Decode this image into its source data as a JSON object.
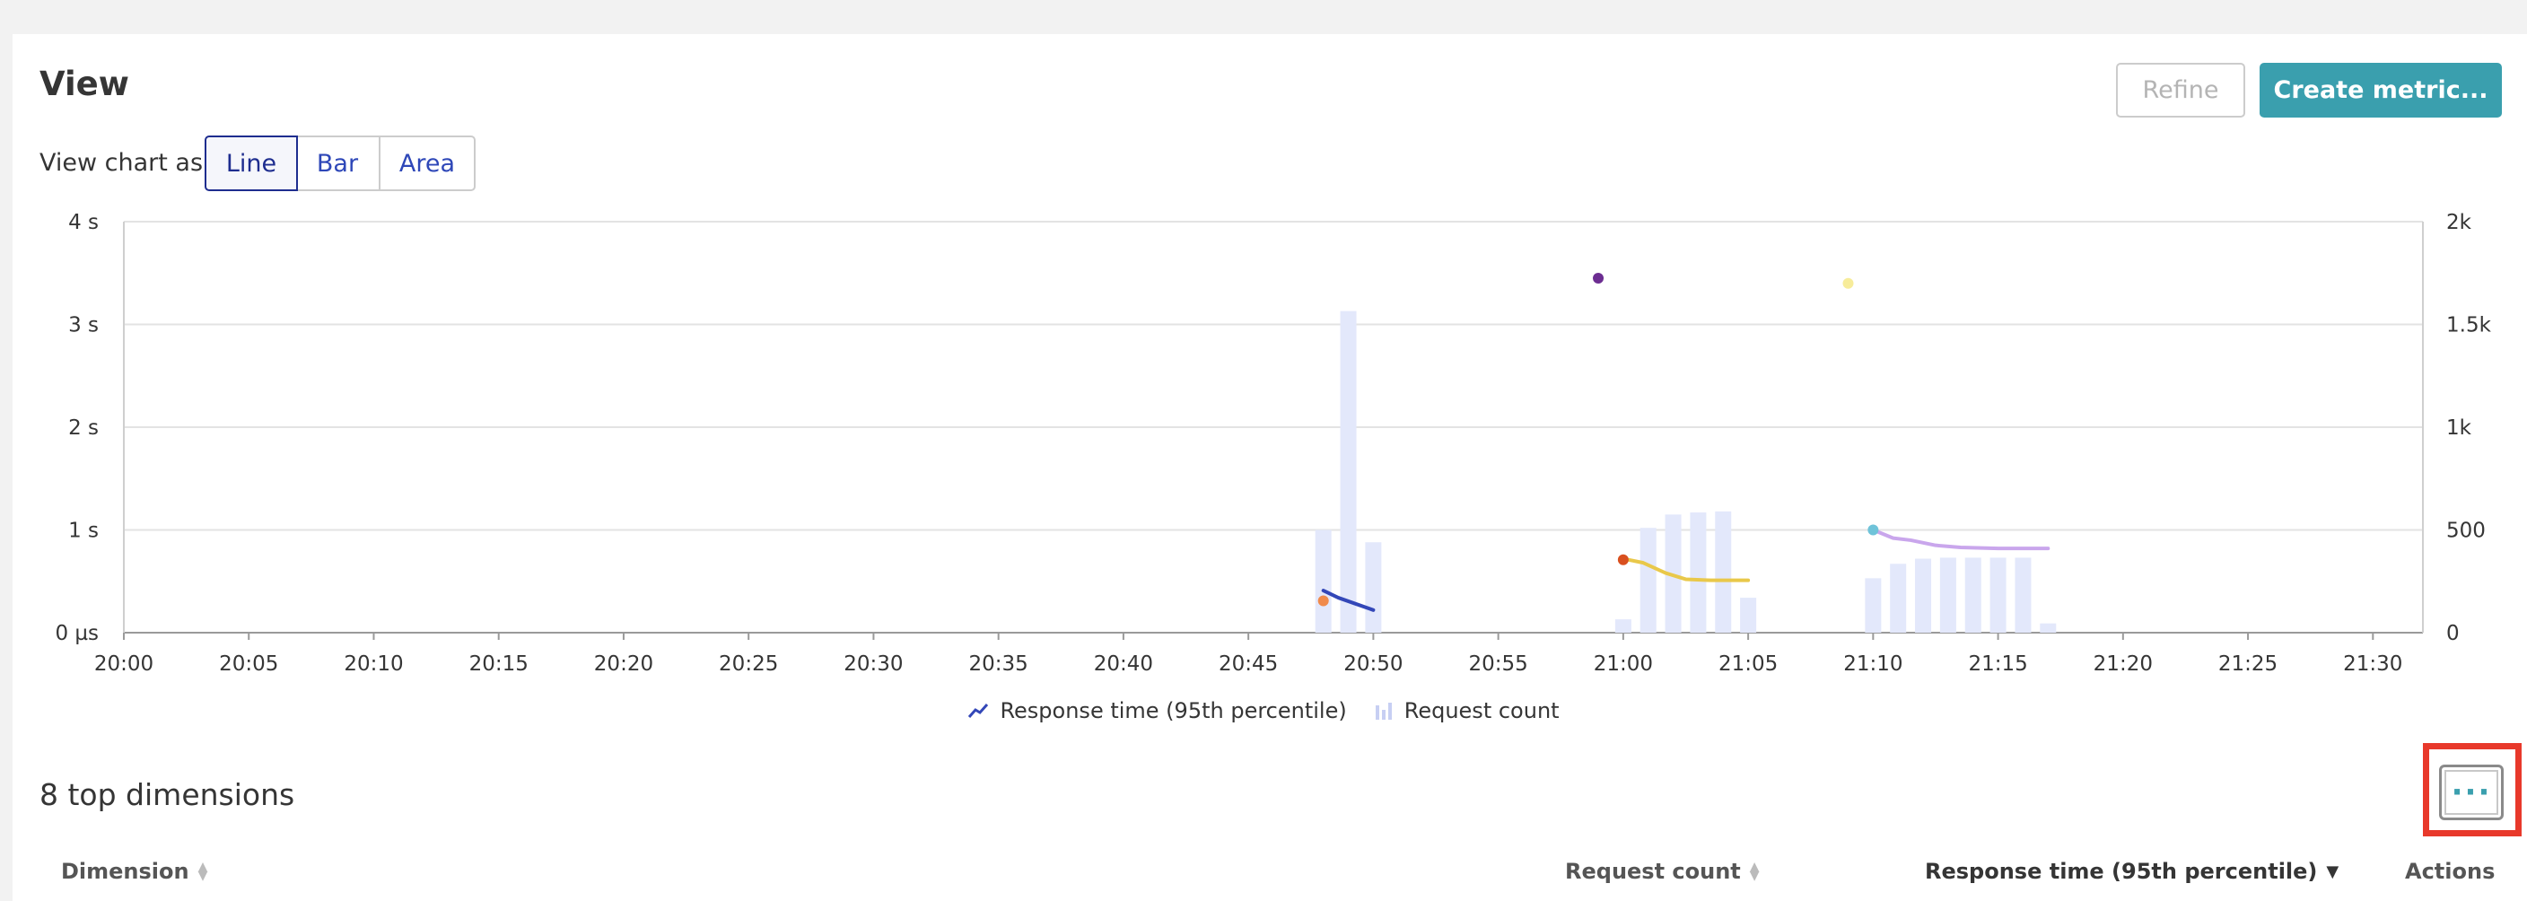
{
  "view": {
    "title": "View",
    "refine_label": "Refine",
    "create_metric_label": "Create metric...",
    "chart_as_label": "View chart as:",
    "chart_types": [
      "Line",
      "Bar",
      "Area"
    ],
    "selected_chart_type": "Line"
  },
  "chart_data": {
    "type": "line",
    "x_ticks": [
      "20:00",
      "20:05",
      "20:10",
      "20:15",
      "20:20",
      "20:25",
      "20:30",
      "20:35",
      "20:40",
      "20:45",
      "20:50",
      "20:55",
      "21:00",
      "21:05",
      "21:10",
      "21:15",
      "21:20",
      "21:25",
      "21:30"
    ],
    "y_left_ticks": [
      "0 µs",
      "1 s",
      "2 s",
      "3 s",
      "4 s"
    ],
    "y_right_ticks": [
      "0",
      "500",
      "1k",
      "1.5k",
      "2k"
    ],
    "ylim_left": [
      0,
      4
    ],
    "ylim_right": [
      0,
      2000
    ],
    "grid": true,
    "legend_position": "bottom",
    "series": [
      {
        "name": "Response time (95th percentile)",
        "axis": "left",
        "type": "line",
        "segments": [
          {
            "color": "#3347b8",
            "points": [
              [
                48.0,
                0.41
              ],
              [
                48.6,
                0.34
              ],
              [
                49.3,
                0.28
              ],
              [
                50.0,
                0.22
              ]
            ]
          },
          {
            "color": "#e9c84a",
            "points": [
              [
                60.0,
                0.72
              ],
              [
                60.8,
                0.68
              ],
              [
                61.7,
                0.58
              ],
              [
                62.5,
                0.52
              ],
              [
                63.5,
                0.51
              ],
              [
                65.0,
                0.51
              ]
            ]
          },
          {
            "color": "#c9a6ec",
            "points": [
              [
                70.0,
                1.0
              ],
              [
                70.8,
                0.92
              ],
              [
                71.5,
                0.9
              ],
              [
                72.5,
                0.85
              ],
              [
                73.5,
                0.83
              ],
              [
                75.0,
                0.82
              ],
              [
                77.0,
                0.82
              ]
            ]
          }
        ],
        "markers": [
          {
            "x": 48.0,
            "y": 0.31,
            "color": "#f08a4b"
          },
          {
            "x": 59.0,
            "y": 3.45,
            "color": "#6c2d91"
          },
          {
            "x": 60.0,
            "y": 0.71,
            "color": "#d9501f"
          },
          {
            "x": 69.0,
            "y": 3.4,
            "color": "#f7ec9a"
          },
          {
            "x": 70.0,
            "y": 1.0,
            "color": "#6fc3d9"
          }
        ]
      },
      {
        "name": "Request count",
        "axis": "right",
        "type": "bar",
        "color": "#e3e8fb",
        "x": [
          48,
          49,
          50,
          60,
          61,
          62,
          63,
          64,
          65,
          70,
          71,
          72,
          73,
          74,
          75,
          76,
          77
        ],
        "values": [
          500,
          1565,
          440,
          65,
          510,
          575,
          585,
          590,
          170,
          265,
          335,
          360,
          365,
          365,
          365,
          365,
          45
        ]
      }
    ]
  },
  "dimensions": {
    "title": "8 top dimensions",
    "columns": [
      {
        "label": "Dimension",
        "sort": "none"
      },
      {
        "label": "Request count",
        "sort": "none"
      },
      {
        "label": "Response time (95th percentile)",
        "sort": "desc"
      },
      {
        "label": "Actions",
        "sort": null
      }
    ]
  }
}
